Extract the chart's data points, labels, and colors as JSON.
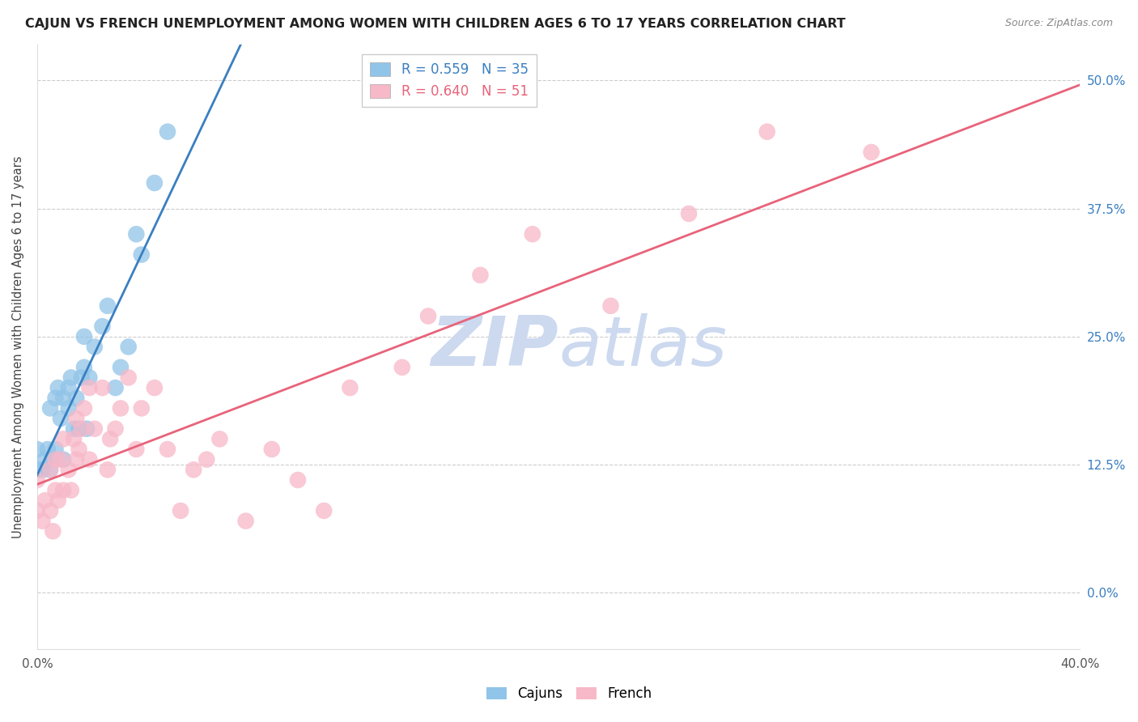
{
  "title": "CAJUN VS FRENCH UNEMPLOYMENT AMONG WOMEN WITH CHILDREN AGES 6 TO 17 YEARS CORRELATION CHART",
  "source": "Source: ZipAtlas.com",
  "ylabel": "Unemployment Among Women with Children Ages 6 to 17 years",
  "xmin": 0.0,
  "xmax": 0.4,
  "ymin": -0.055,
  "ymax": 0.535,
  "cajun_R": "0.559",
  "cajun_N": "35",
  "french_R": "0.640",
  "french_N": "51",
  "cajun_color": "#90c4e8",
  "french_color": "#f7b8c8",
  "cajun_line_color": "#3a7fc1",
  "french_line_color": "#e8637a",
  "watermark_color": "#ccd9ef",
  "cajun_x": [
    0.0,
    0.0,
    0.002,
    0.003,
    0.004,
    0.005,
    0.005,
    0.006,
    0.007,
    0.007,
    0.008,
    0.009,
    0.01,
    0.01,
    0.012,
    0.012,
    0.013,
    0.014,
    0.015,
    0.016,
    0.017,
    0.018,
    0.018,
    0.019,
    0.02,
    0.022,
    0.025,
    0.027,
    0.03,
    0.032,
    0.035,
    0.038,
    0.04,
    0.045,
    0.05
  ],
  "cajun_y": [
    0.12,
    0.14,
    0.12,
    0.13,
    0.14,
    0.12,
    0.18,
    0.13,
    0.14,
    0.19,
    0.2,
    0.17,
    0.13,
    0.19,
    0.18,
    0.2,
    0.21,
    0.16,
    0.19,
    0.16,
    0.21,
    0.22,
    0.25,
    0.16,
    0.21,
    0.24,
    0.26,
    0.28,
    0.2,
    0.22,
    0.24,
    0.35,
    0.33,
    0.4,
    0.45
  ],
  "french_x": [
    0.0,
    0.0,
    0.002,
    0.003,
    0.005,
    0.005,
    0.006,
    0.007,
    0.007,
    0.008,
    0.009,
    0.01,
    0.01,
    0.012,
    0.013,
    0.014,
    0.015,
    0.015,
    0.016,
    0.017,
    0.018,
    0.02,
    0.02,
    0.022,
    0.025,
    0.027,
    0.028,
    0.03,
    0.032,
    0.035,
    0.038,
    0.04,
    0.045,
    0.05,
    0.055,
    0.06,
    0.065,
    0.07,
    0.08,
    0.09,
    0.1,
    0.11,
    0.12,
    0.14,
    0.15,
    0.17,
    0.19,
    0.22,
    0.25,
    0.28,
    0.32
  ],
  "french_y": [
    0.08,
    0.11,
    0.07,
    0.09,
    0.08,
    0.12,
    0.06,
    0.1,
    0.13,
    0.09,
    0.13,
    0.1,
    0.15,
    0.12,
    0.1,
    0.15,
    0.13,
    0.17,
    0.14,
    0.16,
    0.18,
    0.13,
    0.2,
    0.16,
    0.2,
    0.12,
    0.15,
    0.16,
    0.18,
    0.21,
    0.14,
    0.18,
    0.2,
    0.14,
    0.08,
    0.12,
    0.13,
    0.15,
    0.07,
    0.14,
    0.11,
    0.08,
    0.2,
    0.22,
    0.27,
    0.31,
    0.35,
    0.28,
    0.37,
    0.45,
    0.43
  ]
}
